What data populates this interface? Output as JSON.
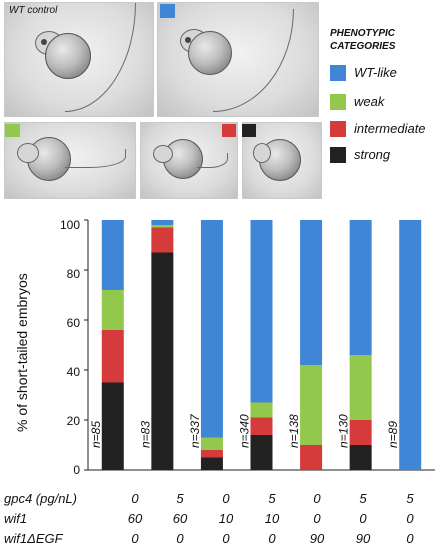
{
  "figure": {
    "wt_control_label": "WT control"
  },
  "legend": {
    "title_line1": "PHENOTYPIC",
    "title_line2": "CATEGORIES",
    "items": [
      {
        "label": "WT-like",
        "color": "#3f87d6"
      },
      {
        "label": "weak",
        "color": "#92c84b"
      },
      {
        "label": "intermediate",
        "color": "#d63b3b"
      },
      {
        "label": "strong",
        "color": "#222222"
      }
    ]
  },
  "chart_data": {
    "type": "bar",
    "stacked": true,
    "ylabel": "% of short-tailed embryos",
    "ylim": [
      0,
      100
    ],
    "yticks": [
      "0",
      "20",
      "40",
      "60",
      "80",
      "100"
    ],
    "n_labels": [
      "n=85",
      "n=83",
      "n=337",
      "n=340",
      "n=138",
      "n=130",
      "n=89"
    ],
    "series": [
      {
        "name": "strong",
        "color": "#222222",
        "values": [
          35,
          87,
          5,
          14,
          0,
          10,
          0
        ]
      },
      {
        "name": "intermediate",
        "color": "#d63b3b",
        "values": [
          21,
          10,
          3,
          7,
          10,
          10,
          0
        ]
      },
      {
        "name": "weak",
        "color": "#92c84b",
        "values": [
          16,
          1,
          5,
          6,
          32,
          26,
          0
        ]
      },
      {
        "name": "WT-like",
        "color": "#3f87d6",
        "values": [
          28,
          2,
          87,
          73,
          58,
          54,
          100
        ]
      }
    ],
    "conditions": [
      {
        "label": "gpc4 (pg/nL)",
        "values": [
          "0",
          "5",
          "0",
          "5",
          "0",
          "5",
          "5"
        ]
      },
      {
        "label": "wif1",
        "values": [
          "60",
          "60",
          "10",
          "10",
          "0",
          "0",
          "0"
        ]
      },
      {
        "label": "wif1ΔEGF",
        "values": [
          "0",
          "0",
          "0",
          "0",
          "90",
          "90",
          "0"
        ]
      }
    ]
  }
}
